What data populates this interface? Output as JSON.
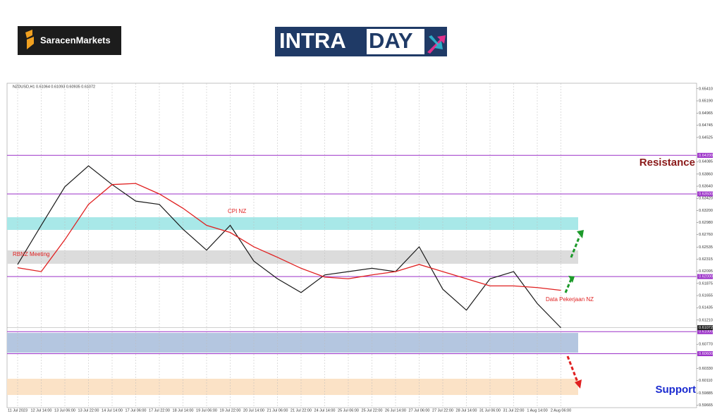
{
  "logos": {
    "left": "SaracenMarkets",
    "right_a": "INTRA",
    "right_b": "DAY"
  },
  "chart_data": {
    "type": "line",
    "header_text": "NZDUSD,H1  0.61064 0.61093 0.60935 0.61072",
    "categories": [
      "11 Jul 2023",
      "12 Jul 14:00",
      "13 Jul 06:00",
      "13 Jul 22:00",
      "14 Jul 14:00",
      "17 Jul 06:00",
      "17 Jul 22:00",
      "18 Jul 14:00",
      "19 Jul 06:00",
      "19 Jul 22:00",
      "20 Jul 14:00",
      "21 Jul 06:00",
      "21 Jul 22:00",
      "24 Jul 14:00",
      "25 Jul 06:00",
      "25 Jul 22:00",
      "26 Jul 14:00",
      "27 Jul 06:00",
      "27 Jul 22:00",
      "28 Jul 14:00",
      "31 Jul 06:00",
      "31 Jul 22:00",
      "1 Aug 14:00",
      "2 Aug 06:00"
    ],
    "series": [
      {
        "color": "#1a1a1a",
        "values": [
          0.6222,
          0.6293,
          0.6363,
          0.6401,
          0.6367,
          0.6337,
          0.6331,
          0.6286,
          0.6248,
          0.6293,
          0.6228,
          0.6196,
          0.6171,
          0.6203,
          0.6209,
          0.6215,
          0.6209,
          0.6254,
          0.6177,
          0.6139,
          0.6196,
          0.6209,
          0.6151,
          0.6107
        ]
      },
      {
        "color": "#e02020",
        "values": [
          0.6216,
          0.6209,
          0.6267,
          0.6331,
          0.6367,
          0.6369,
          0.635,
          0.6324,
          0.6293,
          0.628,
          0.6254,
          0.6235,
          0.6215,
          0.6199,
          0.6196,
          0.6203,
          0.6209,
          0.6222,
          0.6209,
          0.6196,
          0.6183,
          0.6183,
          0.618,
          0.6175
        ]
      }
    ],
    "ylim": [
      0.5962,
      0.6551
    ],
    "yticks": [
      {
        "value": 0.6541,
        "label": "0.65410"
      },
      {
        "value": 0.6519,
        "label": "0.65190"
      },
      {
        "value": 0.64965,
        "label": "0.64965"
      },
      {
        "value": 0.64745,
        "label": "0.64745"
      },
      {
        "value": 0.64525,
        "label": "0.64525"
      },
      {
        "value": 0.64085,
        "label": "0.64085"
      },
      {
        "value": 0.6386,
        "label": "0.63860"
      },
      {
        "value": 0.6364,
        "label": "0.63640"
      },
      {
        "value": 0.6342,
        "label": "0.63420"
      },
      {
        "value": 0.632,
        "label": "0.63200"
      },
      {
        "value": 0.6298,
        "label": "0.62980"
      },
      {
        "value": 0.6276,
        "label": "0.62760"
      },
      {
        "value": 0.62535,
        "label": "0.62535"
      },
      {
        "value": 0.62315,
        "label": "0.62315"
      },
      {
        "value": 0.62095,
        "label": "0.62095"
      },
      {
        "value": 0.61875,
        "label": "0.61875"
      },
      {
        "value": 0.61655,
        "label": "0.61655"
      },
      {
        "value": 0.61435,
        "label": "0.61435"
      },
      {
        "value": 0.6121,
        "label": "0.61210"
      },
      {
        "value": 0.6077,
        "label": "0.60770"
      },
      {
        "value": 0.6033,
        "label": "0.60330"
      },
      {
        "value": 0.6011,
        "label": "0.60110"
      },
      {
        "value": 0.59885,
        "label": "0.59885"
      },
      {
        "value": 0.59665,
        "label": "0.59665"
      }
    ],
    "levels": [
      {
        "value": 0.642,
        "label": "0.64200"
      },
      {
        "value": 0.635,
        "label": "0.63500"
      },
      {
        "value": 0.62,
        "label": "0.62000"
      },
      {
        "value": 0.61,
        "label": "0.61000"
      },
      {
        "value": 0.606,
        "label": "0.60600"
      }
    ],
    "level_color": "#9b30c8",
    "zones": [
      {
        "from": 0.63077,
        "to": 0.62847,
        "color": "#a8e8e8"
      },
      {
        "from": 0.62475,
        "to": 0.62232,
        "color": "#dcdcdc"
      },
      {
        "from": 0.60977,
        "to": 0.60618,
        "color": "#b4c6e0"
      },
      {
        "from": 0.60145,
        "to": 0.5985,
        "color": "#fbe2c6"
      }
    ],
    "current_price": {
      "value": 0.61072,
      "label": "0.61072"
    },
    "annotations": {
      "rbnz": "RBNZ Meeting",
      "cpi": "CPI NZ",
      "jobs": "Data Pekerjaan NZ",
      "resistance": "Resistance",
      "support": "Support"
    },
    "grid": true
  }
}
